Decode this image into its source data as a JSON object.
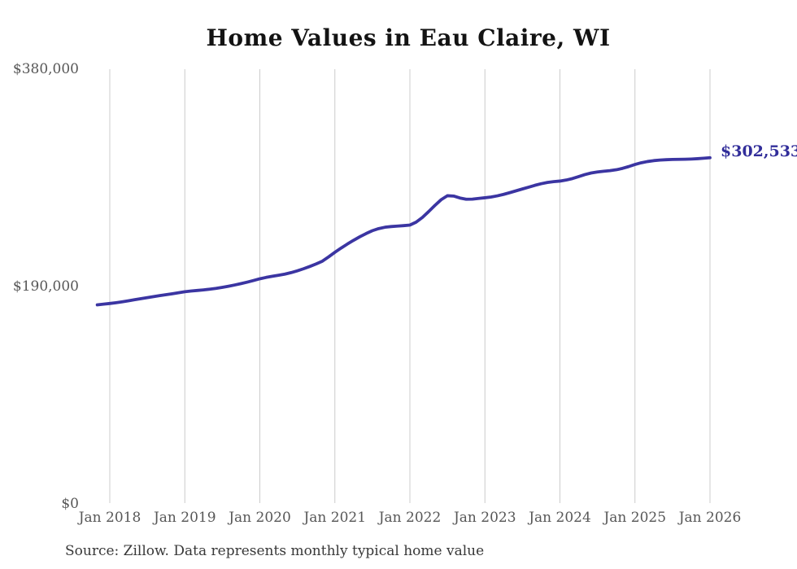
{
  "title": "Home Values in Eau Claire, WI",
  "source_note": "Source: Zillow. Data represents monthly typical home value",
  "end_label": "$302,533",
  "colors": {
    "line": "#3b35a2",
    "end_label": "#322e9a",
    "gridline": "#cccccc",
    "tick_label": "#575757",
    "title": "#131313",
    "source": "#383838",
    "background": "#ffffff"
  },
  "chart_data": {
    "type": "line",
    "title": "Home Values in Eau Claire, WI",
    "xlabel": "",
    "ylabel": "",
    "ylim": [
      0,
      380000
    ],
    "grid": "vertical-only",
    "legend": "none",
    "y_ticks": [
      {
        "value": 0,
        "label": "$0"
      },
      {
        "value": 190000,
        "label": "$190,000"
      },
      {
        "value": 380000,
        "label": "$380,000"
      }
    ],
    "x_tick_labels": [
      "Jan 2018",
      "Jan 2019",
      "Jan 2020",
      "Jan 2021",
      "Jan 2022",
      "Jan 2023",
      "Jan 2024",
      "Jan 2025",
      "Jan 2026"
    ],
    "end_annotation": {
      "text": "$302,533",
      "value": 302533
    },
    "series": [
      {
        "name": "Monthly typical home value",
        "start_month": "2017-11",
        "end_month": "2026-01",
        "months_per_point": 1,
        "values": [
          173800,
          174400,
          175000,
          175700,
          176500,
          177400,
          178300,
          179200,
          180100,
          181000,
          181900,
          182700,
          183500,
          184400,
          185300,
          185900,
          186400,
          186900,
          187500,
          188200,
          189100,
          190100,
          191200,
          192400,
          193700,
          195100,
          196600,
          197800,
          198800,
          199700,
          200700,
          202000,
          203600,
          205400,
          207400,
          209600,
          212000,
          215800,
          219800,
          223500,
          227000,
          230300,
          233400,
          236200,
          238700,
          240500,
          241700,
          242300,
          242700,
          243100,
          243600,
          246200,
          250300,
          255400,
          260800,
          265800,
          269300,
          269000,
          267300,
          266200,
          266300,
          266900,
          267500,
          268200,
          269200,
          270500,
          272000,
          273600,
          275200,
          276800,
          278400,
          279800,
          280900,
          281600,
          282100,
          283000,
          284300,
          286000,
          287800,
          289200,
          290100,
          290700,
          291200,
          292000,
          293200,
          294800,
          296600,
          298100,
          299200,
          300000,
          300500,
          300800,
          301000,
          301100,
          301200,
          301400,
          301700,
          302100,
          302533
        ]
      }
    ]
  }
}
